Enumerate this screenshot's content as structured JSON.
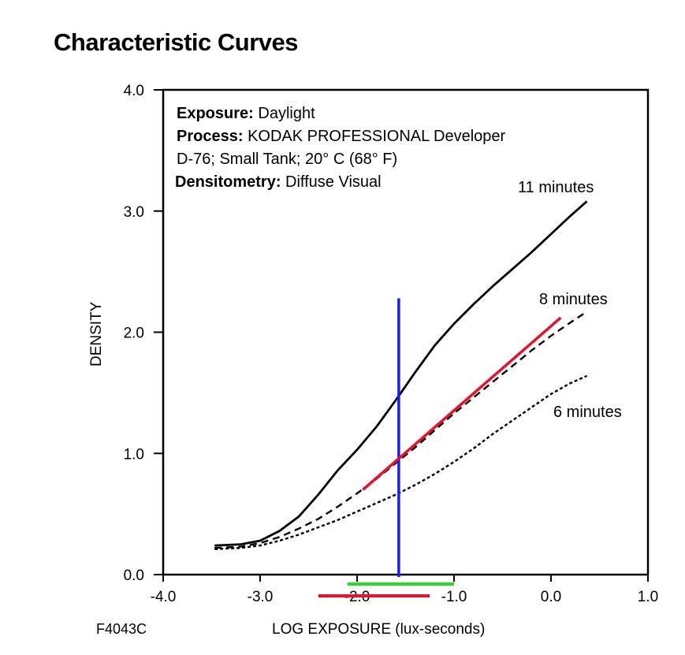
{
  "title": "Characteristic Curves",
  "figure_id": "F4043C",
  "annotation": {
    "exposure_label": "Exposure:",
    "exposure_value": "Daylight",
    "process_label": "Process:",
    "process_value_line1": "KODAK PROFESSIONAL Developer",
    "process_value_line2": "D-76; Small Tank; 20° C (68° F)",
    "densitometry_label": "Densitometry:",
    "densitometry_value": "Diffuse Visual"
  },
  "chart_data": {
    "type": "line",
    "xlabel": "LOG EXPOSURE (lux-seconds)",
    "ylabel": "DENSITY",
    "xlim": [
      -4.0,
      1.0
    ],
    "ylim": [
      0.0,
      4.0
    ],
    "x_ticks": [
      -4.0,
      -3.0,
      -2.0,
      -1.0,
      0.0,
      1.0
    ],
    "x_tick_labels": [
      "-4.0",
      "-3.0",
      "-2.0",
      "-1.0",
      "0.0",
      "1.0"
    ],
    "y_ticks": [
      0.0,
      1.0,
      2.0,
      3.0,
      4.0
    ],
    "y_tick_labels": [
      "0.0",
      "1.0",
      "2.0",
      "3.0",
      "4.0"
    ],
    "grid": false,
    "series": [
      {
        "name": "11 minutes",
        "style": "solid",
        "color": "#000000",
        "x": [
          -3.47,
          -3.2,
          -3.0,
          -2.8,
          -2.6,
          -2.4,
          -2.2,
          -2.0,
          -1.8,
          -1.6,
          -1.4,
          -1.2,
          -1.0,
          -0.8,
          -0.6,
          -0.4,
          -0.2,
          0.0,
          0.2,
          0.37
        ],
        "y": [
          0.24,
          0.25,
          0.28,
          0.36,
          0.48,
          0.66,
          0.86,
          1.03,
          1.22,
          1.44,
          1.67,
          1.89,
          2.07,
          2.23,
          2.38,
          2.52,
          2.66,
          2.81,
          2.96,
          3.08
        ]
      },
      {
        "name": "8 minutes",
        "style": "dashed",
        "color": "#000000",
        "x": [
          -3.47,
          -3.2,
          -3.0,
          -2.8,
          -2.6,
          -2.4,
          -2.2,
          -2.0,
          -1.8,
          -1.6,
          -1.4,
          -1.2,
          -1.0,
          -0.8,
          -0.6,
          -0.4,
          -0.2,
          0.0,
          0.2,
          0.37
        ],
        "y": [
          0.22,
          0.23,
          0.26,
          0.31,
          0.38,
          0.46,
          0.56,
          0.67,
          0.79,
          0.92,
          1.05,
          1.19,
          1.33,
          1.46,
          1.59,
          1.72,
          1.85,
          1.97,
          2.08,
          2.17
        ]
      },
      {
        "name": "6 minutes",
        "style": "dotted",
        "color": "#000000",
        "x": [
          -3.47,
          -3.2,
          -3.0,
          -2.8,
          -2.6,
          -2.4,
          -2.2,
          -2.0,
          -1.8,
          -1.6,
          -1.4,
          -1.2,
          -1.0,
          -0.8,
          -0.6,
          -0.4,
          -0.2,
          0.0,
          0.2,
          0.37
        ],
        "y": [
          0.21,
          0.22,
          0.24,
          0.28,
          0.33,
          0.39,
          0.45,
          0.52,
          0.59,
          0.66,
          0.74,
          0.83,
          0.93,
          1.04,
          1.16,
          1.27,
          1.38,
          1.49,
          1.58,
          1.64
        ]
      }
    ],
    "annotations": [
      {
        "type": "vertical-line",
        "color": "#1a1aff",
        "x": -1.57,
        "y_range": [
          0.0,
          2.28
        ]
      },
      {
        "type": "segment",
        "color": "#e8102a",
        "from": [
          -1.94,
          0.7
        ],
        "to": [
          0.1,
          2.12
        ]
      },
      {
        "type": "range-bar",
        "color": "#22dd22",
        "x_range": [
          -2.1,
          -1.0
        ],
        "position": "below-axis-upper"
      },
      {
        "type": "range-bar",
        "color": "#e8102a",
        "x_range": [
          -2.4,
          -1.25
        ],
        "position": "below-axis-lower"
      }
    ]
  }
}
